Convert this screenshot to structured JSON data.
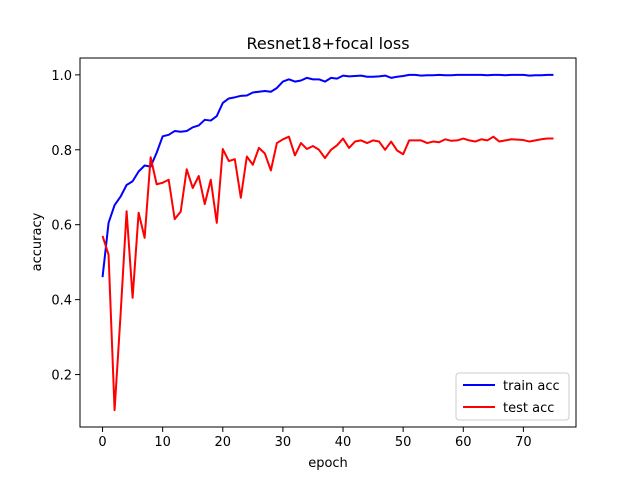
{
  "chart_data": {
    "type": "line",
    "title": "Resnet18+focal loss",
    "xlabel": "epoch",
    "ylabel": "accuracy",
    "xlim": [
      -3.75,
      78.75
    ],
    "ylim": [
      0.06,
      1.045
    ],
    "xticks": [
      "0",
      "10",
      "20",
      "30",
      "40",
      "50",
      "60",
      "70"
    ],
    "yticks": [
      "0.2",
      "0.4",
      "0.6",
      "0.8",
      "1.0"
    ],
    "legend_position": "lower-right",
    "x": [
      0,
      1,
      2,
      3,
      4,
      5,
      6,
      7,
      8,
      9,
      10,
      11,
      12,
      13,
      14,
      15,
      16,
      17,
      18,
      19,
      20,
      21,
      22,
      23,
      24,
      25,
      26,
      27,
      28,
      29,
      30,
      31,
      32,
      33,
      34,
      35,
      36,
      37,
      38,
      39,
      40,
      41,
      42,
      43,
      44,
      45,
      46,
      47,
      48,
      49,
      50,
      51,
      52,
      53,
      54,
      55,
      56,
      57,
      58,
      59,
      60,
      61,
      62,
      63,
      64,
      65,
      66,
      67,
      68,
      69,
      70,
      71,
      72,
      73,
      74,
      75
    ],
    "series": [
      {
        "name": "train acc",
        "color": "#0000ff",
        "values": [
          0.46,
          0.605,
          0.652,
          0.675,
          0.706,
          0.716,
          0.742,
          0.758,
          0.755,
          0.792,
          0.836,
          0.84,
          0.85,
          0.848,
          0.85,
          0.86,
          0.865,
          0.88,
          0.878,
          0.89,
          0.925,
          0.937,
          0.94,
          0.944,
          0.945,
          0.953,
          0.955,
          0.957,
          0.955,
          0.965,
          0.982,
          0.988,
          0.982,
          0.985,
          0.992,
          0.988,
          0.988,
          0.982,
          0.992,
          0.99,
          0.998,
          0.996,
          0.997,
          0.998,
          0.995,
          0.995,
          0.996,
          0.998,
          0.992,
          0.995,
          0.997,
          1.0,
          1.0,
          0.998,
          0.999,
          0.999,
          1.0,
          0.999,
          0.999,
          1.0,
          1.0,
          1.0,
          1.0,
          1.0,
          0.999,
          1.0,
          1.0,
          0.999,
          1.0,
          1.0,
          1.0,
          0.998,
          0.999,
          0.999,
          1.0,
          1.0
        ]
      },
      {
        "name": "test acc",
        "color": "#ff0000",
        "values": [
          0.57,
          0.52,
          0.105,
          0.36,
          0.636,
          0.405,
          0.632,
          0.565,
          0.78,
          0.708,
          0.712,
          0.72,
          0.615,
          0.635,
          0.748,
          0.698,
          0.73,
          0.655,
          0.72,
          0.605,
          0.802,
          0.77,
          0.775,
          0.672,
          0.782,
          0.76,
          0.805,
          0.79,
          0.745,
          0.818,
          0.828,
          0.835,
          0.785,
          0.818,
          0.802,
          0.81,
          0.8,
          0.778,
          0.8,
          0.812,
          0.83,
          0.805,
          0.822,
          0.825,
          0.818,
          0.825,
          0.822,
          0.8,
          0.822,
          0.798,
          0.788,
          0.825,
          0.825,
          0.825,
          0.818,
          0.822,
          0.82,
          0.828,
          0.824,
          0.825,
          0.83,
          0.825,
          0.822,
          0.828,
          0.825,
          0.835,
          0.822,
          0.825,
          0.828,
          0.827,
          0.826,
          0.822,
          0.825,
          0.828,
          0.83,
          0.83
        ]
      }
    ]
  }
}
